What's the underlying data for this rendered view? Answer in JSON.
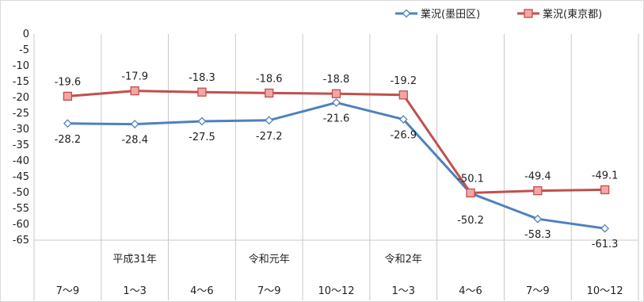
{
  "chart_data": {
    "type": "line",
    "categories": [
      "7～9",
      "1～3",
      "4～6",
      "7～9",
      "10～12",
      "1～3",
      "4～6",
      "7～9",
      "10～12"
    ],
    "category_groups": [
      {
        "label": "平成31年",
        "index": 1
      },
      {
        "label": "令和元年",
        "index": 3
      },
      {
        "label": "令和2年",
        "index": 5
      }
    ],
    "series": [
      {
        "name": "業況(墨田区)",
        "values": [
          -28.2,
          -28.4,
          -27.5,
          -27.2,
          -21.6,
          -26.9,
          -50.2,
          -58.3,
          -61.3
        ],
        "labels": [
          "-28.2",
          "-28.4",
          "-27.5",
          "-27.2",
          "-21.6",
          "-26.9",
          "-50.2",
          "-58.3",
          "-61.3"
        ],
        "color": "#4f81bd",
        "marker": "diamond-open"
      },
      {
        "name": "業況(東京都)",
        "values": [
          -19.6,
          -17.9,
          -18.3,
          -18.6,
          -18.8,
          -19.2,
          -50.1,
          -49.4,
          -49.1
        ],
        "labels": [
          "-19.6",
          "-17.9",
          "-18.3",
          "-18.6",
          "-18.8",
          "-19.2",
          "-50.1",
          "-49.4",
          "-49.1"
        ],
        "color": "#c0504d",
        "marker": "square-filled"
      }
    ],
    "ylim": [
      -65,
      0
    ],
    "yticks": [
      "0",
      "-5",
      "-10",
      "-15",
      "-20",
      "-25",
      "-30",
      "-35",
      "-40",
      "-45",
      "-50",
      "-55",
      "-60",
      "-65"
    ],
    "grid": "vertical",
    "legend": "top-right"
  }
}
